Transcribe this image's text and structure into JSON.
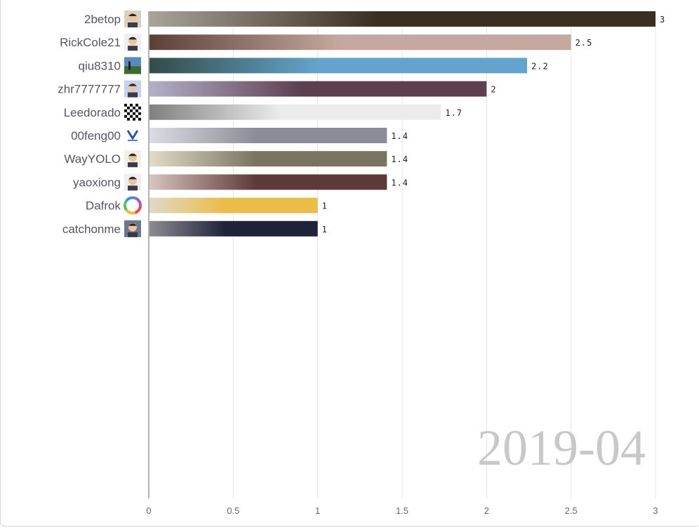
{
  "chart_data": {
    "type": "bar",
    "orientation": "horizontal",
    "period": "2019-04",
    "xlim": [
      0,
      3
    ],
    "xticks": [
      0,
      0.5,
      1,
      1.5,
      2,
      2.5,
      3
    ],
    "grid": true,
    "categories": [
      "2betop",
      "RickCole21",
      "qiu8310",
      "zhr7777777",
      "Leedorado",
      "00feng00",
      "WayYOLO",
      "yaoxiong",
      "Dafrok",
      "catchonme"
    ],
    "values": [
      3,
      2.5,
      2.24,
      2,
      1.73,
      1.41,
      1.41,
      1.41,
      1,
      1
    ],
    "value_labels": [
      "3",
      "2.5",
      "2.2",
      "2",
      "1.7",
      "1.4",
      "1.4",
      "1.4",
      "1",
      "1"
    ],
    "bar_colors": [
      [
        "#a8a498",
        "#3a3022"
      ],
      [
        "#5c4038",
        "#c4a89e"
      ],
      [
        "#334c48",
        "#64a4cc"
      ],
      [
        "#b4b0c8",
        "#5c4050"
      ],
      [
        "#808080",
        "#ececec"
      ],
      [
        "#dcdce4",
        "#8c8c98"
      ],
      [
        "#e0dcc8",
        "#787460"
      ],
      [
        "#d8c4c0",
        "#5c3a38"
      ],
      [
        "#e0d8c8",
        "#ecbc48"
      ],
      [
        "#8c8c90",
        "#20223a"
      ]
    ],
    "avatar_icons": [
      "boy-avatar-icon",
      "man-avatar-icon",
      "landscape-avatar-icon",
      "anime-avatar-icon",
      "checkerboard-avatar-icon",
      "logo-avatar-icon",
      "cartoon-face-avatar-icon",
      "man-avatar-icon",
      "color-ring-avatar-icon",
      "couple-avatar-icon"
    ]
  }
}
